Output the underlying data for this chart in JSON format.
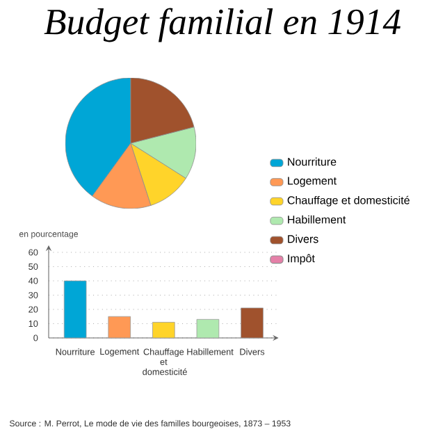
{
  "chart_data": [
    {
      "type": "pie",
      "title": "Budget familial en 1914",
      "categories": [
        "Nourriture",
        "Logement",
        "Chauffage et domesticité",
        "Habillement",
        "Divers",
        "Impôt"
      ],
      "values": [
        40,
        15,
        11,
        13,
        21,
        0
      ],
      "colors": [
        "#00a6d6",
        "#ff9955",
        "#ffd42a",
        "#afe9af",
        "#a0522d",
        "#e580a8"
      ],
      "legend": "right"
    },
    {
      "type": "bar",
      "ylabel": "en pourcentage",
      "categories": [
        "Nourriture",
        "Logement",
        "Chauffage et domesticité",
        "Habillement",
        "Divers"
      ],
      "values": [
        40,
        15,
        11,
        13,
        21
      ],
      "colors": [
        "#00a6d6",
        "#ff9955",
        "#ffd42a",
        "#afe9af",
        "#a0522d"
      ],
      "ylim": [
        0,
        65
      ],
      "yticks": [
        0,
        10,
        20,
        30,
        40,
        50,
        60
      ],
      "grid": "y",
      "annotations": [
        "Source : M. Perrot, Le mode de vie des familles bourgeoises, 1873 – 1953"
      ]
    }
  ]
}
